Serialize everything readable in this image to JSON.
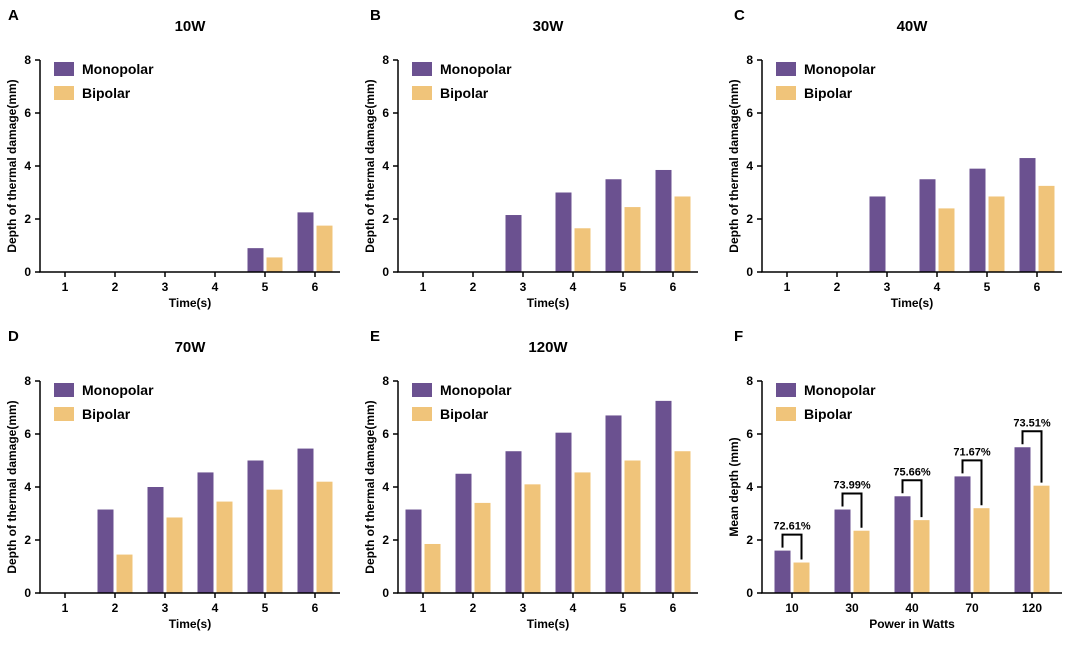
{
  "colors": {
    "monopolar": "#6b5190",
    "bipolar": "#f0c47a",
    "axis": "#000000"
  },
  "chart_data": [
    {
      "panel": "A",
      "title": "10W",
      "type": "bar",
      "xlabel": "Time(s)",
      "ylabel": "Depth of thermal damage(mm)",
      "ylim": [
        0,
        8
      ],
      "yticks": [
        "0",
        "2",
        "4",
        "6",
        "8"
      ],
      "categories": [
        "1",
        "2",
        "3",
        "4",
        "5",
        "6"
      ],
      "series": [
        {
          "name": "Monopolar",
          "values": [
            0,
            0,
            0,
            0,
            0.9,
            2.25
          ]
        },
        {
          "name": "Bipolar",
          "values": [
            0,
            0,
            0,
            0,
            0.55,
            1.75
          ]
        }
      ],
      "legend": "top-left"
    },
    {
      "panel": "B",
      "title": "30W",
      "type": "bar",
      "xlabel": "Time(s)",
      "ylabel": "Depth of thermal damage(mm)",
      "ylim": [
        0,
        8
      ],
      "yticks": [
        "0",
        "2",
        "4",
        "6",
        "8"
      ],
      "categories": [
        "1",
        "2",
        "3",
        "4",
        "5",
        "6"
      ],
      "series": [
        {
          "name": "Monopolar",
          "values": [
            0,
            0,
            2.15,
            3.0,
            3.5,
            3.85
          ]
        },
        {
          "name": "Bipolar",
          "values": [
            0,
            0,
            0,
            1.65,
            2.45,
            2.85
          ]
        }
      ],
      "legend": "top-left"
    },
    {
      "panel": "C",
      "title": "40W",
      "type": "bar",
      "xlabel": "Time(s)",
      "ylabel": "Depth of thermal damage(mm)",
      "ylim": [
        0,
        8
      ],
      "yticks": [
        "0",
        "2",
        "4",
        "6",
        "8"
      ],
      "categories": [
        "1",
        "2",
        "3",
        "4",
        "5",
        "6"
      ],
      "series": [
        {
          "name": "Monopolar",
          "values": [
            0,
            0,
            2.85,
            3.5,
            3.9,
            4.3
          ]
        },
        {
          "name": "Bipolar",
          "values": [
            0,
            0,
            0,
            2.4,
            2.85,
            3.25
          ]
        }
      ],
      "legend": "top-left"
    },
    {
      "panel": "D",
      "title": "70W",
      "type": "bar",
      "xlabel": "Time(s)",
      "ylabel": "Depth of thermal damage(mm)",
      "ylim": [
        0,
        8
      ],
      "yticks": [
        "0",
        "2",
        "4",
        "6",
        "8"
      ],
      "categories": [
        "1",
        "2",
        "3",
        "4",
        "5",
        "6"
      ],
      "series": [
        {
          "name": "Monopolar",
          "values": [
            0,
            3.15,
            4.0,
            4.55,
            5.0,
            5.45
          ]
        },
        {
          "name": "Bipolar",
          "values": [
            0,
            1.45,
            2.85,
            3.45,
            3.9,
            4.2
          ]
        }
      ],
      "legend": "top-left"
    },
    {
      "panel": "E",
      "title": "120W",
      "type": "bar",
      "xlabel": "Time(s)",
      "ylabel": "Depth of thermal damage(mm)",
      "ylim": [
        0,
        8
      ],
      "yticks": [
        "0",
        "2",
        "4",
        "6",
        "8"
      ],
      "categories": [
        "1",
        "2",
        "3",
        "4",
        "5",
        "6"
      ],
      "series": [
        {
          "name": "Monopolar",
          "values": [
            3.15,
            4.5,
            5.35,
            6.05,
            6.7,
            7.25
          ]
        },
        {
          "name": "Bipolar",
          "values": [
            1.85,
            3.4,
            4.1,
            4.55,
            5.0,
            5.35
          ]
        }
      ],
      "legend": "top-left"
    },
    {
      "panel": "F",
      "title": "",
      "type": "bar",
      "xlabel": "Power in Watts",
      "ylabel": "Mean depth (mm)",
      "ylim": [
        0,
        8
      ],
      "yticks": [
        "0",
        "2",
        "4",
        "6",
        "8"
      ],
      "categories": [
        "10",
        "30",
        "40",
        "70",
        "120"
      ],
      "series": [
        {
          "name": "Monopolar",
          "values": [
            1.6,
            3.15,
            3.65,
            4.4,
            5.5
          ]
        },
        {
          "name": "Bipolar",
          "values": [
            1.15,
            2.35,
            2.75,
            3.2,
            4.05
          ]
        }
      ],
      "annotations": [
        "72.61%",
        "73.99%",
        "75.66%",
        "71.67%",
        "73.51%"
      ],
      "legend": "top-left"
    }
  ]
}
